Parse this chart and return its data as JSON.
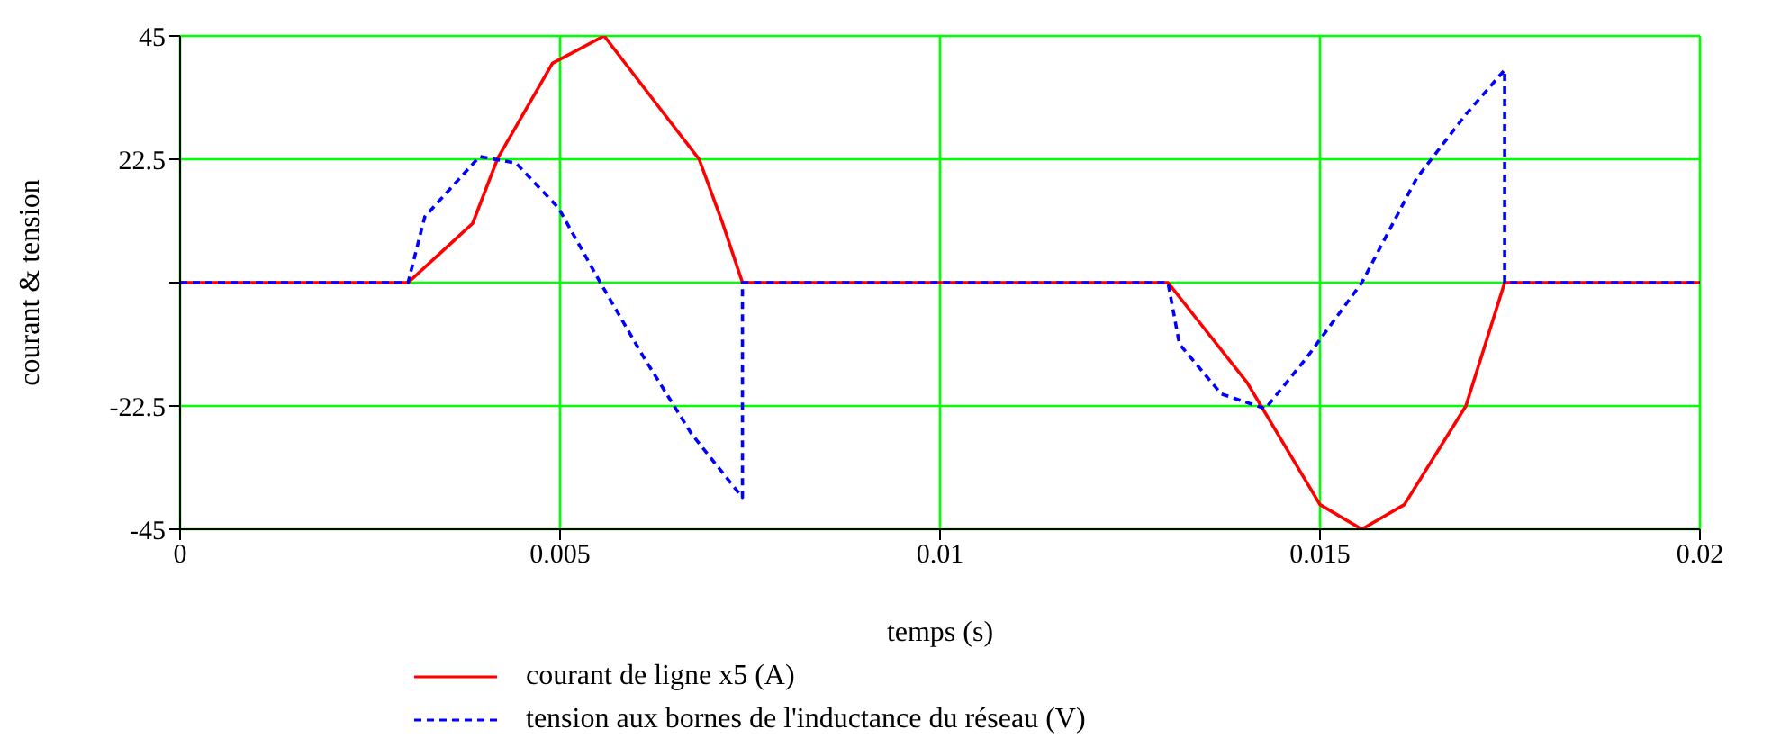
{
  "chart_data": {
    "type": "line",
    "xlabel": "temps (s)",
    "ylabel": "courant & tension",
    "xlim": [
      0,
      0.02
    ],
    "xticks": [
      0,
      0.005,
      0.01,
      0.015,
      0.02
    ],
    "ylim": [
      -45,
      45
    ],
    "yticks": [
      -45,
      -22.5,
      {
        "value": 0,
        "label": null
      },
      22.5,
      45
    ],
    "grid": true,
    "legend": "bottom",
    "marker": "none",
    "series": [
      {
        "name": "courant de ligne x5 (A)",
        "color": "#ff0000",
        "line_style": "solid",
        "x": [
          0,
          0.003,
          0.00385,
          0.00418,
          0.0049,
          0.00558,
          0.00683,
          0.00714,
          0.0074,
          0.013,
          0.01404,
          0.015,
          0.01555,
          0.01611,
          0.01692,
          0.01743,
          0.02
        ],
        "values": [
          0,
          0,
          10.8,
          22.7,
          40,
          45,
          22.5,
          10.8,
          0,
          0,
          -18.2,
          -40.5,
          -45,
          -40.5,
          -22.5,
          0,
          0
        ]
      },
      {
        "name": "tension aux bornes de l'inductance du réseau (V)",
        "color": "#0000ff",
        "line_style": "dashed",
        "x": [
          0,
          0.003,
          0.00322,
          0.00394,
          0.00442,
          0.00498,
          0.00553,
          0.0061,
          0.00673,
          0.0074,
          0.0074,
          0.013,
          0.01315,
          0.0137,
          0.01428,
          0.01483,
          0.01555,
          0.01627,
          0.01692,
          0.01743,
          0.01743,
          0.02
        ],
        "values": [
          0,
          0,
          12,
          23,
          21.8,
          13.6,
          0,
          -13.6,
          -27.6,
          -39.2,
          0,
          0,
          -11.2,
          -20.3,
          -23,
          -13.6,
          0,
          19,
          30.7,
          38.8,
          0,
          0
        ]
      }
    ]
  }
}
